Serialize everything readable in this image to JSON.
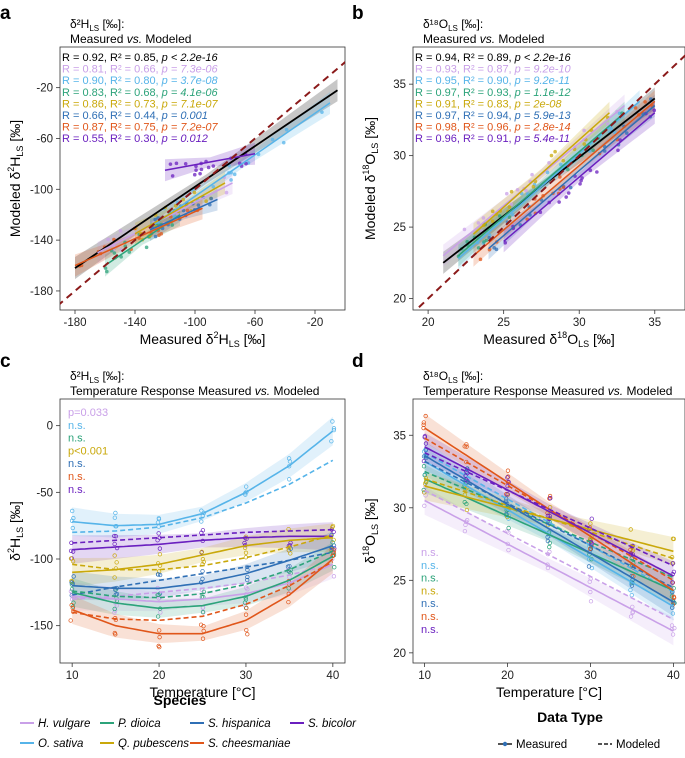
{
  "colors": {
    "black": "#000000",
    "H_vulgare": "#c9a0e8",
    "O_sativa": "#56b4e9",
    "P_dioica": "#2ca37a",
    "Q_pubescens": "#c9a80a",
    "S_hispanica": "#2f6fb5",
    "S_cheesmaniae": "#e0561a",
    "S_bicolor": "#6a1fbf",
    "identity": "#8b1a1a"
  },
  "chart_data": [
    {
      "panel": "a",
      "type": "scatter",
      "header_line1": "δ²H",
      "header_sub": "LS",
      "header_unit": " [‰]:",
      "header_line2_a": "Measured ",
      "header_line2_vs": "vs.",
      "header_line2_b": " Modeled",
      "xlabel_main": "Measured δ",
      "xlabel_sup": "2",
      "xlabel_tail": "H",
      "xlabel_sub": "LS",
      "xlabel_unit": " [‰]",
      "ylabel_main": "Modeled δ",
      "ylabel_sup": "2",
      "ylabel_tail": "H",
      "ylabel_sub": "LS",
      "ylabel_unit": " [‰]",
      "xlim": [
        -190,
        0
      ],
      "ylim": [
        -195,
        12
      ],
      "xticks": [
        -180,
        -140,
        -100,
        -60,
        -20
      ],
      "yticks": [
        -180,
        -140,
        -100,
        -60,
        -20
      ],
      "stats": [
        {
          "series": "All",
          "color_key": "black",
          "r": "R = 0.92",
          "r2": ", R² = 0.85, ",
          "p": "p < 2.2e-16"
        },
        {
          "series": "H. vulgare",
          "color_key": "H_vulgare",
          "r": "R = 0.81",
          "r2": ", R² = 0.66, ",
          "p": "p = 7.3e-06"
        },
        {
          "series": "O. sativa",
          "color_key": "O_sativa",
          "r": "R = 0.90",
          "r2": ", R² = 0.80, ",
          "p": "p = 3.7e-08"
        },
        {
          "series": "P. dioica",
          "color_key": "P_dioica",
          "r": "R = 0.83",
          "r2": ", R² = 0.68, ",
          "p": "p = 4.1e-06"
        },
        {
          "series": "Q. pubescens",
          "color_key": "Q_pubescens",
          "r": "R = 0.86",
          "r2": ", R² = 0.73, ",
          "p": "p = 7.1e-07"
        },
        {
          "series": "S. hispanica",
          "color_key": "S_hispanica",
          "r": "R = 0.66",
          "r2": ", R² = 0.44, ",
          "p": "p = 0.001"
        },
        {
          "series": "S. cheesmaniae",
          "color_key": "S_cheesmaniae",
          "r": "R = 0.87",
          "r2": ", R² = 0.75, ",
          "p": "p = 7.2e-07"
        },
        {
          "series": "S. bicolor",
          "color_key": "S_bicolor",
          "r": "R = 0.55",
          "r2": ", R² = 0.30, ",
          "p": "p = 0.012"
        }
      ],
      "fits": [
        {
          "series": "All",
          "color_key": "black",
          "x": [
            -180,
            -5
          ],
          "y": [
            -162,
            -22
          ]
        },
        {
          "series": "H. vulgare",
          "color_key": "H_vulgare",
          "x": [
            -165,
            -75
          ],
          "y": [
            -150,
            -95
          ]
        },
        {
          "series": "O. sativa",
          "color_key": "O_sativa",
          "x": [
            -130,
            -10
          ],
          "y": [
            -130,
            -32
          ]
        },
        {
          "series": "P. dioica",
          "color_key": "P_dioica",
          "x": [
            -160,
            -110
          ],
          "y": [
            -160,
            -120
          ]
        },
        {
          "series": "Q. pubescens",
          "color_key": "Q_pubescens",
          "x": [
            -140,
            -80
          ],
          "y": [
            -135,
            -95
          ]
        },
        {
          "series": "S. hispanica",
          "color_key": "S_hispanica",
          "x": [
            -130,
            -85
          ],
          "y": [
            -132,
            -108
          ]
        },
        {
          "series": "S. cheesmaniae",
          "color_key": "S_cheesmaniae",
          "x": [
            -180,
            -95
          ],
          "y": [
            -160,
            -115
          ]
        },
        {
          "series": "S. bicolor",
          "color_key": "S_bicolor",
          "x": [
            -120,
            -60
          ],
          "y": [
            -85,
            -72
          ]
        }
      ]
    },
    {
      "panel": "b",
      "type": "scatter",
      "header_line1": "δ¹⁸O",
      "header_sub": "LS",
      "header_unit": " [‰]:",
      "header_line2_a": "Measured ",
      "header_line2_vs": "vs.",
      "header_line2_b": " Modeled",
      "xlabel_main": "Measured δ",
      "xlabel_sup": "18",
      "xlabel_tail": "O",
      "xlabel_sub": "LS",
      "xlabel_unit": " [‰]",
      "ylabel_main": "Modeled δ",
      "ylabel_sup": "18",
      "ylabel_tail": "O",
      "ylabel_sub": "LS",
      "ylabel_unit": " [‰]",
      "xlim": [
        19,
        37
      ],
      "ylim": [
        19.2,
        37.6
      ],
      "xticks": [
        20,
        25,
        30,
        35
      ],
      "yticks": [
        20,
        25,
        30,
        35
      ],
      "stats": [
        {
          "series": "All",
          "color_key": "black",
          "r": "R = 0.94",
          "r2": ", R² = 0.89, ",
          "p": "p < 2.2e-16"
        },
        {
          "series": "H. vulgare",
          "color_key": "H_vulgare",
          "r": "R = 0.93",
          "r2": ", R² = 0.87, ",
          "p": "p = 9.2e-10"
        },
        {
          "series": "O. sativa",
          "color_key": "O_sativa",
          "r": "R = 0.95",
          "r2": ", R² = 0.90, ",
          "p": "p = 9.2e-11"
        },
        {
          "series": "P. dioica",
          "color_key": "P_dioica",
          "r": "R = 0.97",
          "r2": ", R² = 0.93, ",
          "p": "p = 1.1e-12"
        },
        {
          "series": "Q. pubescens",
          "color_key": "Q_pubescens",
          "r": "R = 0.91",
          "r2": ", R² = 0.83, ",
          "p": "p = 2e-08"
        },
        {
          "series": "S. hispanica",
          "color_key": "S_hispanica",
          "r": "R = 0.97",
          "r2": ", R² = 0.94, ",
          "p": "p = 5.9e-13"
        },
        {
          "series": "S. cheesmaniae",
          "color_key": "S_cheesmaniae",
          "r": "R = 0.98",
          "r2": ", R² = 0.96, ",
          "p": "p = 2.8e-14"
        },
        {
          "series": "S. bicolor",
          "color_key": "S_bicolor",
          "r": "R = 0.96",
          "r2": ", R² = 0.91, ",
          "p": "p = 5.4e-11"
        }
      ],
      "fits": [
        {
          "series": "All",
          "color_key": "black",
          "x": [
            21,
            35
          ],
          "y": [
            22.5,
            34.0
          ]
        },
        {
          "series": "H. vulgare",
          "color_key": "H_vulgare",
          "x": [
            21,
            33
          ],
          "y": [
            23.0,
            33.5
          ]
        },
        {
          "series": "O. sativa",
          "color_key": "O_sativa",
          "x": [
            22,
            34
          ],
          "y": [
            22.8,
            33.8
          ]
        },
        {
          "series": "P. dioica",
          "color_key": "P_dioica",
          "x": [
            22,
            33
          ],
          "y": [
            23.0,
            33.0
          ]
        },
        {
          "series": "Q. pubescens",
          "color_key": "Q_pubescens",
          "x": [
            23,
            32
          ],
          "y": [
            24.5,
            33.0
          ]
        },
        {
          "series": "S. hispanica",
          "color_key": "S_hispanica",
          "x": [
            24,
            35
          ],
          "y": [
            23.5,
            33.5
          ]
        },
        {
          "series": "S. cheesmaniae",
          "color_key": "S_cheesmaniae",
          "x": [
            23,
            35
          ],
          "y": [
            23.0,
            33.8
          ]
        },
        {
          "series": "S. bicolor",
          "color_key": "S_bicolor",
          "x": [
            25,
            35
          ],
          "y": [
            24.0,
            33.0
          ]
        }
      ]
    },
    {
      "panel": "c",
      "type": "line",
      "header_line1": "δ²H",
      "header_sub": "LS",
      "header_unit": " [‰]:",
      "header_line2_a": "Temperature Response Measured ",
      "header_line2_vs": "vs.",
      "header_line2_b": " Modeled",
      "xlabel": "Temperature [°C]",
      "ylabel_main": "δ",
      "ylabel_sup": "2",
      "ylabel_tail": "H",
      "ylabel_sub": "LS",
      "ylabel_unit": " [‰]",
      "xlim": [
        8.6,
        41.4
      ],
      "ylim": [
        -178,
        20
      ],
      "xticks": [
        10,
        20,
        30,
        40
      ],
      "yticks": [
        -150,
        -100,
        -50,
        0
      ],
      "pvalues": [
        {
          "series": "H. vulgare",
          "color_key": "H_vulgare",
          "text": "p=0.033"
        },
        {
          "series": "O. sativa",
          "color_key": "O_sativa",
          "text": "n.s."
        },
        {
          "series": "P. dioica",
          "color_key": "P_dioica",
          "text": "n.s."
        },
        {
          "series": "Q. pubescens",
          "color_key": "Q_pubescens",
          "text": "p<0.001"
        },
        {
          "series": "S. hispanica",
          "color_key": "S_hispanica",
          "text": "n.s."
        },
        {
          "series": "S. cheesmaniae",
          "color_key": "S_cheesmaniae",
          "text": "n.s."
        },
        {
          "series": "S. bicolor",
          "color_key": "S_bicolor",
          "text": "n.s."
        }
      ],
      "x": [
        10,
        15,
        20,
        25,
        30,
        35,
        40
      ],
      "series": [
        {
          "name": "O. sativa",
          "color_key": "O_sativa",
          "measured": [
            -72,
            -75,
            -74,
            -66,
            -50,
            -30,
            -4
          ],
          "modeled": [
            -80,
            -79,
            -76,
            -69,
            -58,
            -44,
            -26
          ]
        },
        {
          "name": "S. bicolor",
          "color_key": "S_bicolor",
          "measured": [
            -93,
            -91,
            -89,
            -86,
            -84,
            -83,
            -83
          ],
          "modeled": [
            -88,
            -86,
            -84,
            -82,
            -80,
            -79,
            -78
          ]
        },
        {
          "name": "Q. pubescens",
          "color_key": "Q_pubescens",
          "measured": [
            -110,
            -108,
            -104,
            -97,
            -90,
            -86,
            -84
          ],
          "modeled": [
            -104,
            -108,
            -108,
            -105,
            -99,
            -91,
            -82
          ]
        },
        {
          "name": "S. hispanica",
          "color_key": "S_hispanica",
          "measured": [
            -120,
            -122,
            -122,
            -118,
            -111,
            -101,
            -90
          ],
          "modeled": [
            -127,
            -121,
            -116,
            -111,
            -106,
            -101,
            -95
          ]
        },
        {
          "name": "H. vulgare",
          "color_key": "H_vulgare",
          "measured": [
            -128,
            -130,
            -132,
            -130,
            -126,
            -118,
            -104
          ],
          "modeled": [
            -130,
            -128,
            -125,
            -122,
            -118,
            -112,
            -104
          ]
        },
        {
          "name": "P. dioica",
          "color_key": "P_dioica",
          "measured": [
            -125,
            -133,
            -137,
            -135,
            -128,
            -116,
            -98
          ],
          "modeled": [
            -124,
            -128,
            -129,
            -126,
            -119,
            -108,
            -94
          ]
        },
        {
          "name": "S. cheesmaniae",
          "color_key": "S_cheesmaniae",
          "measured": [
            -138,
            -150,
            -156,
            -156,
            -146,
            -127,
            -100
          ],
          "modeled": [
            -140,
            -145,
            -146,
            -143,
            -134,
            -120,
            -102
          ]
        }
      ]
    },
    {
      "panel": "d",
      "type": "line",
      "header_line1": "δ¹⁸O",
      "header_sub": "LS",
      "header_unit": " [‰]:",
      "header_line2_a": "Temperature Response Measured ",
      "header_line2_vs": "vs.",
      "header_line2_b": " Modeled",
      "xlabel": "Temperature [°C]",
      "ylabel_main": "δ",
      "ylabel_sup": "18",
      "ylabel_tail": "O",
      "ylabel_sub": "LS",
      "ylabel_unit": " [‰]",
      "xlim": [
        8.6,
        41.4
      ],
      "ylim": [
        19.3,
        37.5
      ],
      "xticks": [
        10,
        20,
        30,
        40
      ],
      "yticks": [
        20,
        25,
        30,
        35
      ],
      "pvalues": [
        {
          "series": "H. vulgare",
          "color_key": "H_vulgare",
          "text": "n.s."
        },
        {
          "series": "O. sativa",
          "color_key": "O_sativa",
          "text": "n.s."
        },
        {
          "series": "P. dioica",
          "color_key": "P_dioica",
          "text": "n.s."
        },
        {
          "series": "Q. pubescens",
          "color_key": "Q_pubescens",
          "text": "n.s."
        },
        {
          "series": "S. hispanica",
          "color_key": "S_hispanica",
          "text": "n.s."
        },
        {
          "series": "S. cheesmaniae",
          "color_key": "S_cheesmaniae",
          "text": "n.s."
        },
        {
          "series": "S. bicolor",
          "color_key": "S_bicolor",
          "text": "n.s."
        }
      ],
      "x": [
        10,
        40
      ],
      "series": [
        {
          "name": "H. vulgare",
          "color_key": "H_vulgare",
          "measured": [
            30.5,
            21.5
          ],
          "modeled": [
            31.2,
            22.3
          ]
        },
        {
          "name": "O. sativa",
          "color_key": "O_sativa",
          "measured": [
            33.2,
            23.2
          ],
          "modeled": [
            33.8,
            24.2
          ]
        },
        {
          "name": "P. dioica",
          "color_key": "P_dioica",
          "measured": [
            32.0,
            24.3
          ],
          "modeled": [
            32.5,
            25.2
          ]
        },
        {
          "name": "Q. pubescens",
          "color_key": "Q_pubescens",
          "measured": [
            31.5,
            27.0
          ],
          "modeled": [
            32.0,
            26.5
          ]
        },
        {
          "name": "S. hispanica",
          "color_key": "S_hispanica",
          "measured": [
            33.6,
            23.5
          ],
          "modeled": [
            33.2,
            24.5
          ]
        },
        {
          "name": "S. cheesmaniae",
          "color_key": "S_cheesmaniae",
          "measured": [
            35.5,
            24.3
          ],
          "modeled": [
            34.8,
            25.0
          ]
        },
        {
          "name": "S. bicolor",
          "color_key": "S_bicolor",
          "measured": [
            34.2,
            25.3
          ],
          "modeled": [
            33.8,
            26.0
          ]
        }
      ]
    }
  ],
  "legend": {
    "species_title": "Species",
    "species": [
      {
        "name": "H. vulgare",
        "color_key": "H_vulgare"
      },
      {
        "name": "P. dioica",
        "color_key": "P_dioica"
      },
      {
        "name": "S. hispanica",
        "color_key": "S_hispanica"
      },
      {
        "name": "S. bicolor",
        "color_key": "S_bicolor"
      },
      {
        "name": "O. sativa",
        "color_key": "O_sativa"
      },
      {
        "name": "Q. pubescens",
        "color_key": "Q_pubescens"
      },
      {
        "name": "S. cheesmaniae",
        "color_key": "S_cheesmaniae"
      }
    ],
    "datatype_title": "Data Type",
    "datatypes": [
      "Measured",
      "Modeled"
    ]
  }
}
